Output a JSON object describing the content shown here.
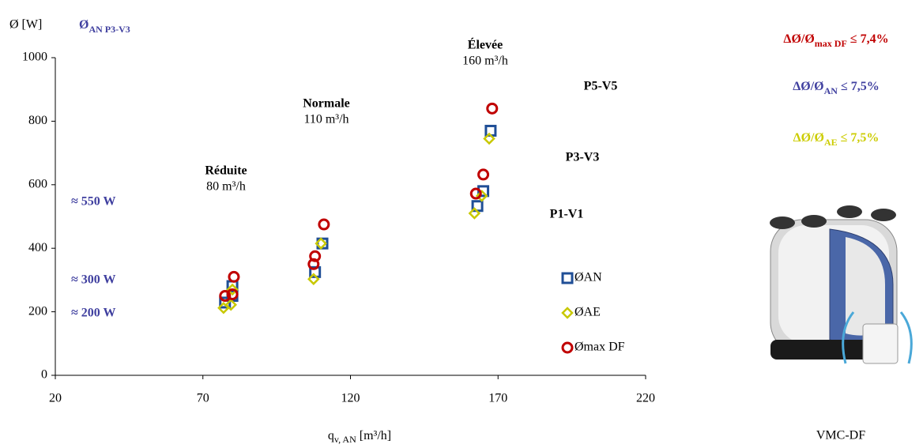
{
  "chart_data": {
    "type": "scatter",
    "y_label": "Ø [W]",
    "header": {
      "symbol": "Ø",
      "subscript": "AN P3-V3"
    },
    "x_label": {
      "symbol": "q",
      "subscript": "v, AN",
      "unit": "[m³/h]"
    },
    "xlim": [
      20,
      220
    ],
    "xticks": [
      20,
      70,
      120,
      170,
      220
    ],
    "ylim": [
      0,
      1000
    ],
    "yticks": [
      0,
      200,
      400,
      600,
      800,
      1000
    ],
    "series": [
      {
        "name": "ØAN",
        "color": "#1f4e96",
        "marker": "square",
        "x": [
          77.5,
          80,
          80,
          108,
          110.5,
          163,
          165,
          167.5
        ],
        "values": [
          229,
          250,
          281,
          325,
          415,
          533,
          580,
          770
        ]
      },
      {
        "name": "ØAE",
        "color": "#c8c800",
        "marker": "diamond",
        "x": [
          77,
          79.5,
          80,
          107.5,
          110,
          162,
          164.5,
          167
        ],
        "values": [
          212,
          222,
          270,
          303,
          415,
          510,
          565,
          745
        ]
      },
      {
        "name": "Ømax DF",
        "color": "#c00000",
        "marker": "circle",
        "x": [
          77.5,
          80,
          80.5,
          107.5,
          108,
          111,
          162.5,
          165,
          168
        ],
        "values": [
          250,
          255,
          310,
          350,
          375,
          475,
          572,
          632,
          840
        ]
      }
    ],
    "levels": [
      {
        "name": "Réduite",
        "flow": "80 m³/h"
      },
      {
        "name": "Normale",
        "flow": "110 m³/h"
      },
      {
        "name": "Élevée",
        "flow": "160 m³/h"
      }
    ],
    "configs": [
      "P5-V5",
      "P3-V3",
      "P1-V1"
    ],
    "powers": [
      "≈ 550 W",
      "≈ 300 W",
      "≈ 200 W"
    ],
    "ratios": [
      {
        "symbol": "ΔØ/Ø",
        "subscript": "max DF",
        "bound": "≤ 7,4%",
        "color": "#c00000"
      },
      {
        "symbol": "ΔØ/Ø",
        "subscript": "AN",
        "bound": "≤ 7,5%",
        "color": "#3f3f9f"
      },
      {
        "symbol": "ΔØ/Ø",
        "subscript": "AE",
        "bound": "≤ 7,5%",
        "color": "#cccc00"
      }
    ],
    "device_label": "VMC-DF"
  }
}
